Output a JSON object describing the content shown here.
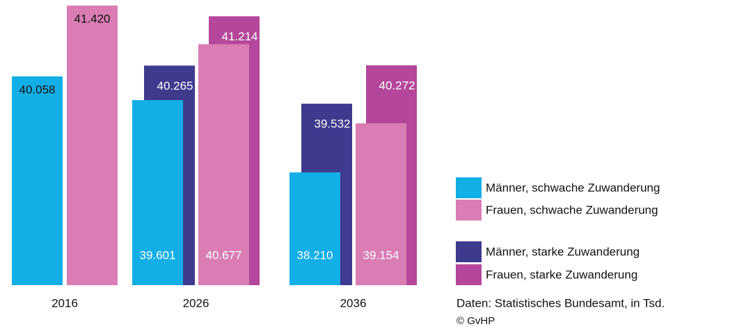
{
  "chart_data": {
    "type": "bar",
    "categories": [
      "2016",
      "2026",
      "2036"
    ],
    "series": [
      {
        "name": "Männer, schwache Zuwanderung",
        "color": "#12aee6",
        "values": [
          40058,
          39601,
          38210
        ],
        "value_labels": [
          "40.058",
          "39.601",
          "38.210"
        ]
      },
      {
        "name": "Frauen, schwache Zuwanderung",
        "color": "#d97db4",
        "values": [
          41420,
          40677,
          39154
        ],
        "value_labels": [
          "41.420",
          "40.677",
          "39.154"
        ]
      },
      {
        "name": "Männer, starke Zuwanderung",
        "color": "#3e3a8e",
        "values": [
          null,
          40265,
          39532
        ],
        "value_labels": [
          null,
          "40.265",
          "39.532"
        ]
      },
      {
        "name": "Frauen, starke Zuwanderung",
        "color": "#b4479b",
        "values": [
          null,
          41214,
          40272
        ],
        "value_labels": [
          null,
          "41.214",
          "40.272"
        ]
      }
    ],
    "ylim": [
      36040,
      41420
    ],
    "source": "Daten: Statistisches Bundesamt, in Tsd.",
    "copyright": "© GvHP"
  }
}
